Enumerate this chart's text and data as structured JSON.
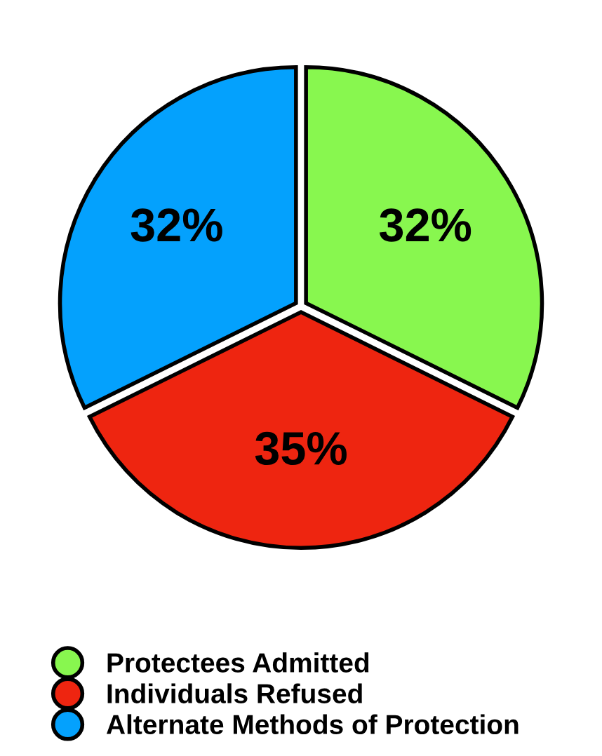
{
  "chart_data": {
    "type": "pie",
    "categories": [
      "Protectees Admitted",
      "Individuals Refused",
      "Alternate Methods of Protection"
    ],
    "values": [
      32,
      35,
      32
    ],
    "colors": [
      "#88f74f",
      "#ee2510",
      "#04a1fd"
    ],
    "value_labels": [
      "32%",
      "35%",
      "32%"
    ],
    "legend": "bottom left"
  }
}
